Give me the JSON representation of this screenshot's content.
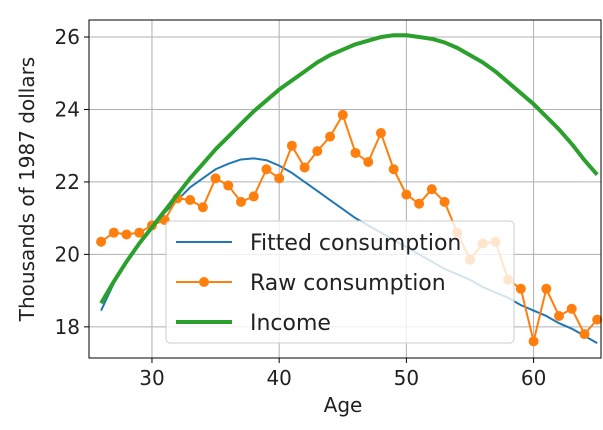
{
  "chart_data": {
    "type": "line",
    "xlabel": "Age",
    "ylabel": "Thousands of 1987 dollars",
    "x": [
      26,
      27,
      28,
      29,
      30,
      31,
      32,
      33,
      34,
      35,
      36,
      37,
      38,
      39,
      40,
      41,
      42,
      43,
      44,
      45,
      46,
      47,
      48,
      49,
      50,
      51,
      52,
      53,
      54,
      55,
      56,
      57,
      58,
      59,
      60,
      61,
      62,
      63,
      64,
      65
    ],
    "series": [
      {
        "name": "Fitted consumption",
        "color": "#1f77b4",
        "marker": false,
        "linewidth": 2,
        "values": [
          18.45,
          19.2,
          19.8,
          20.3,
          20.75,
          21.15,
          21.5,
          21.85,
          22.1,
          22.35,
          22.5,
          22.62,
          22.65,
          22.6,
          22.45,
          22.25,
          22.0,
          21.75,
          21.5,
          21.25,
          21.0,
          20.8,
          20.6,
          20.4,
          20.2,
          20.0,
          19.8,
          19.6,
          19.45,
          19.3,
          19.1,
          18.95,
          18.8,
          18.6,
          18.45,
          18.3,
          18.1,
          17.95,
          17.75,
          17.55
        ]
      },
      {
        "name": "Raw consumption",
        "color": "#ff7f0e",
        "marker": true,
        "linewidth": 2,
        "values": [
          20.35,
          20.6,
          20.55,
          20.6,
          20.8,
          20.95,
          21.55,
          21.5,
          21.3,
          22.1,
          21.9,
          21.45,
          21.6,
          22.35,
          22.1,
          23.0,
          22.4,
          22.85,
          23.25,
          23.85,
          22.8,
          22.55,
          23.35,
          22.35,
          21.65,
          21.4,
          21.8,
          21.45,
          20.6,
          19.85,
          20.3,
          20.35,
          19.3,
          19.05,
          17.6,
          19.05,
          18.3,
          18.5,
          17.8,
          18.2
        ]
      },
      {
        "name": "Income",
        "color": "#2ca02c",
        "marker": false,
        "linewidth": 4,
        "values": [
          18.65,
          19.25,
          19.8,
          20.3,
          20.75,
          21.2,
          21.65,
          22.1,
          22.5,
          22.9,
          23.25,
          23.6,
          23.95,
          24.25,
          24.55,
          24.8,
          25.05,
          25.3,
          25.5,
          25.65,
          25.8,
          25.9,
          26.0,
          26.05,
          26.05,
          26.0,
          25.95,
          25.85,
          25.7,
          25.5,
          25.3,
          25.05,
          24.75,
          24.45,
          24.15,
          23.8,
          23.45,
          23.05,
          22.6,
          22.2
        ]
      }
    ],
    "xlim": [
      25.05,
      65.3
    ],
    "xticks": [
      30,
      40,
      50,
      60
    ],
    "ylim": [
      17.14,
      26.47
    ],
    "yticks": [
      18,
      20,
      22,
      24,
      26
    ],
    "grid": true,
    "legend": "lower center"
  }
}
